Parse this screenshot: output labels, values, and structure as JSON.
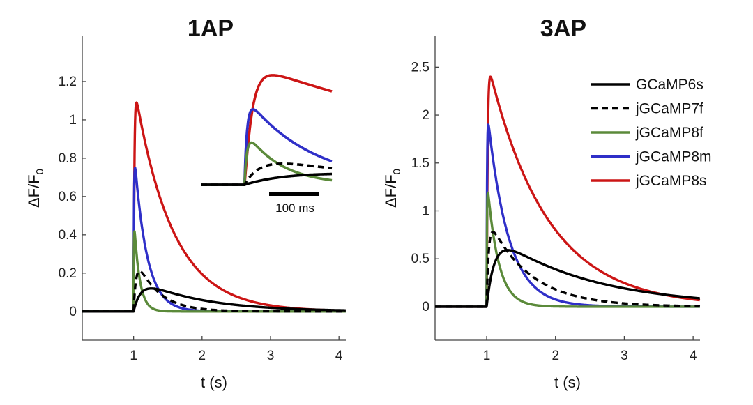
{
  "chart_data": [
    {
      "type": "line",
      "title": "1AP",
      "xlabel": "t (s)",
      "ylabel": "ΔF/F",
      "ylabel_sub": "0",
      "xlim": [
        0.25,
        4.1
      ],
      "ylim": [
        -0.15,
        1.4
      ],
      "xticks": [
        1,
        2,
        3,
        4
      ],
      "xtick_labels": [
        "1",
        "2",
        "3",
        "4"
      ],
      "yticks": [
        0,
        0.2,
        0.4,
        0.6,
        0.8,
        1,
        1.2
      ],
      "ytick_labels": [
        "0",
        "0.2",
        "0.4",
        "0.6",
        "0.8",
        "1",
        "1.2"
      ],
      "onset_s": 1.0,
      "series": [
        {
          "name": "GCaMP6s",
          "color": "#000000",
          "dashed": false,
          "peak": 0.12,
          "rise_tau_s": 0.12,
          "decay_tau_s": 0.9,
          "sharpness": 1.0
        },
        {
          "name": "jGCaMP7f",
          "color": "#000000",
          "dashed": true,
          "peak": 0.21,
          "rise_tau_s": 0.04,
          "decay_tau_s": 0.32,
          "sharpness": 1.0
        },
        {
          "name": "jGCaMP8f",
          "color": "#5b8a3a",
          "dashed": false,
          "peak": 0.42,
          "rise_tau_s": 0.004,
          "decay_tau_s": 0.08,
          "sharpness": 1.0
        },
        {
          "name": "jGCaMP8m",
          "color": "#2f2fc8",
          "dashed": false,
          "peak": 0.75,
          "rise_tau_s": 0.006,
          "decay_tau_s": 0.18,
          "sharpness": 1.0
        },
        {
          "name": "jGCaMP8s",
          "color": "#cc1515",
          "dashed": false,
          "peak": 1.09,
          "rise_tau_s": 0.01,
          "decay_tau_s": 0.55,
          "sharpness": 1.25
        }
      ],
      "inset": {
        "scalebar_label": "100 ms",
        "scalebar_ms": 100,
        "xlim_s": [
          0.9,
          1.2
        ],
        "ylim": [
          -0.02,
          1.2
        ],
        "series": [
          {
            "name": "GCaMP6s",
            "peak": 0.11,
            "rise_tau_s": 0.12,
            "decay_tau_s": 0.9,
            "sharpness": 1.0
          },
          {
            "name": "jGCaMP7f",
            "peak": 0.21,
            "rise_tau_s": 0.04,
            "decay_tau_s": 0.32,
            "sharpness": 1.0
          },
          {
            "name": "jGCaMP8f",
            "peak": 0.42,
            "rise_tau_s": 0.006,
            "decay_tau_s": 0.08,
            "sharpness": 1.0
          },
          {
            "name": "jGCaMP8m",
            "peak": 0.75,
            "rise_tau_s": 0.006,
            "decay_tau_s": 0.15,
            "sharpness": 1.0
          },
          {
            "name": "jGCaMP8s",
            "peak": 1.09,
            "rise_tau_s": 0.016,
            "decay_tau_s": 0.75,
            "sharpness": 1.2
          }
        ]
      }
    },
    {
      "type": "line",
      "title": "3AP",
      "xlabel": "t (s)",
      "ylabel": "ΔF/F",
      "ylabel_sub": "0",
      "xlim": [
        0.25,
        4.1
      ],
      "ylim": [
        -0.35,
        2.75
      ],
      "xticks": [
        1,
        2,
        3,
        4
      ],
      "xtick_labels": [
        "1",
        "2",
        "3",
        "4"
      ],
      "yticks": [
        0,
        0.5,
        1,
        1.5,
        2,
        2.5
      ],
      "ytick_labels": [
        "0",
        "0.5",
        "1",
        "1.5",
        "2",
        "2.5"
      ],
      "onset_s": 1.0,
      "series": [
        {
          "name": "GCaMP6s",
          "color": "#000000",
          "dashed": false,
          "peak": 0.59,
          "rise_tau_s": 0.12,
          "decay_tau_s": 1.4,
          "sharpness": 1.0
        },
        {
          "name": "jGCaMP7f",
          "color": "#000000",
          "dashed": true,
          "peak": 0.78,
          "rise_tau_s": 0.03,
          "decay_tau_s": 0.6,
          "sharpness": 1.0
        },
        {
          "name": "jGCaMP8f",
          "color": "#5b8a3a",
          "dashed": false,
          "peak": 1.19,
          "rise_tau_s": 0.005,
          "decay_tau_s": 0.16,
          "sharpness": 1.0
        },
        {
          "name": "jGCaMP8m",
          "color": "#2f2fc8",
          "dashed": false,
          "peak": 1.9,
          "rise_tau_s": 0.006,
          "decay_tau_s": 0.3,
          "sharpness": 1.0
        },
        {
          "name": "jGCaMP8s",
          "color": "#cc1515",
          "dashed": false,
          "peak": 2.4,
          "rise_tau_s": 0.012,
          "decay_tau_s": 0.85,
          "sharpness": 1.3
        }
      ]
    }
  ],
  "legend": {
    "placement": "right of 3AP panel",
    "entries": [
      {
        "label": "GCaMP6s",
        "color": "#000000",
        "dashed": false
      },
      {
        "label": "jGCaMP7f",
        "color": "#000000",
        "dashed": true
      },
      {
        "label": "jGCaMP8f",
        "color": "#5b8a3a",
        "dashed": false
      },
      {
        "label": "jGCaMP8m",
        "color": "#2f2fc8",
        "dashed": false
      },
      {
        "label": "jGCaMP8s",
        "color": "#cc1515",
        "dashed": false
      }
    ]
  }
}
